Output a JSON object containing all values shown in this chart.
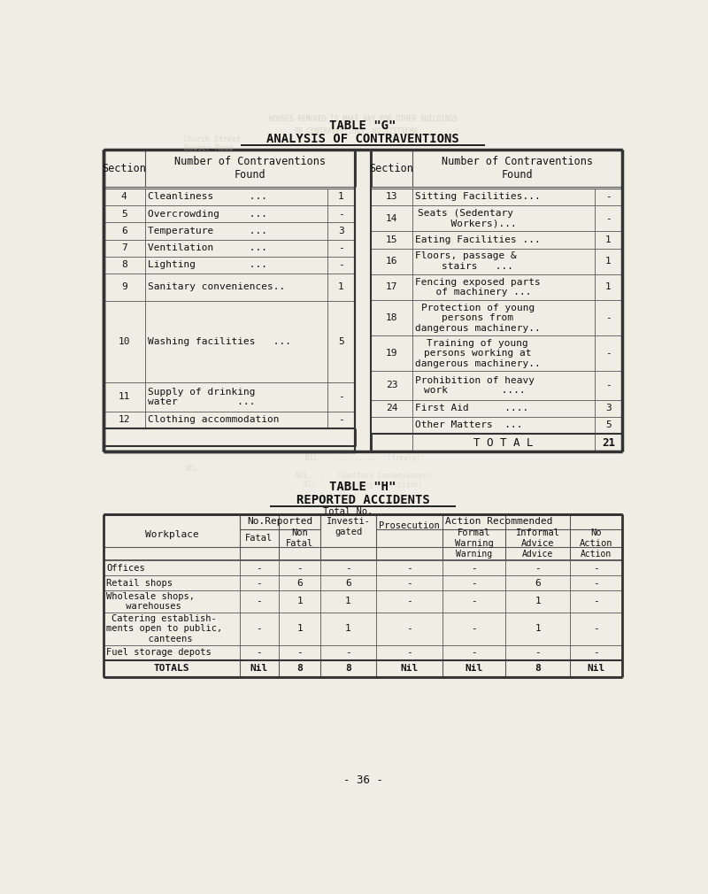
{
  "title1": "TABLE \"G\"",
  "subtitle1": "ANALYSIS OF CONTRAVENTIONS",
  "title2": "TABLE \"H\"",
  "subtitle2": "REPORTED ACCIDENTS",
  "page_number": "- 36 -",
  "bg_color": "#f0ede5",
  "ghost_color": "#c8c4b8",
  "table_border_color": "#555555",
  "left_rows": [
    [
      "4",
      "Cleanliness      ...",
      "1",
      25
    ],
    [
      "5",
      "Overcrowding     ...",
      "-",
      25
    ],
    [
      "6",
      "Temperature      ...",
      "3",
      25
    ],
    [
      "7",
      "Ventilation      ...",
      "-",
      25
    ],
    [
      "8",
      "Lighting         ...",
      "-",
      25
    ],
    [
      "9",
      "Sanitary conveniences..",
      "1",
      40
    ],
    [
      "10",
      "Washing facilities   ...",
      "5",
      120
    ],
    [
      "11",
      "Supply of drinking\nwater          ...",
      "-",
      42
    ],
    [
      "12",
      "Clothing accommodation",
      "-",
      25
    ]
  ],
  "right_rows": [
    [
      "13",
      "Sitting Facilities...",
      "-",
      25
    ],
    [
      "14",
      "Seats (Sedentary\n      Workers)...",
      "-",
      38
    ],
    [
      "15",
      "Eating Facilities ...",
      "1",
      25
    ],
    [
      "16",
      "Floors, passage &\n    stairs   ...",
      "1",
      38
    ],
    [
      "17",
      "Fencing exposed parts\n  of machinery ...",
      "1",
      38
    ],
    [
      "18",
      "Protection of young\npersons from\ndangerous machinery..",
      "-",
      52
    ],
    [
      "19",
      "Training of young\npersons working at\ndangerous machinery..",
      "-",
      52
    ],
    [
      "23",
      "Prohibition of heavy\nwork         ....",
      "-",
      42
    ],
    [
      "24",
      "First Aid      ....",
      "3",
      25
    ],
    [
      "",
      "Other Matters  ...",
      "5",
      25
    ]
  ],
  "total_label": "T O T A L",
  "total_value": "21",
  "t2_rows": [
    [
      "Offices",
      "-",
      "-",
      "-",
      "-",
      "-",
      "-",
      "-"
    ],
    [
      "Retail shops",
      "-",
      "6",
      "6",
      "-",
      "-",
      "6",
      "-"
    ],
    [
      "Wholesale shops,\n warehouses",
      "-",
      "1",
      "1",
      "-",
      "-",
      "1",
      "-"
    ],
    [
      "Catering establish-\nments open to public,\n  canteens",
      "-",
      "1",
      "1",
      "-",
      "-",
      "1",
      "-"
    ],
    [
      "Fuel storage depots",
      "-",
      "-",
      "-",
      "-",
      "-",
      "-",
      "-"
    ]
  ],
  "t2_totals": [
    "TOTALS",
    "Nil",
    "8",
    "8",
    "Nil",
    "Nil",
    "8",
    "Nil"
  ],
  "t2_row_heights": [
    22,
    22,
    32,
    48,
    22
  ],
  "t2_col_widths": [
    168,
    48,
    52,
    68,
    82,
    78,
    80,
    64
  ]
}
